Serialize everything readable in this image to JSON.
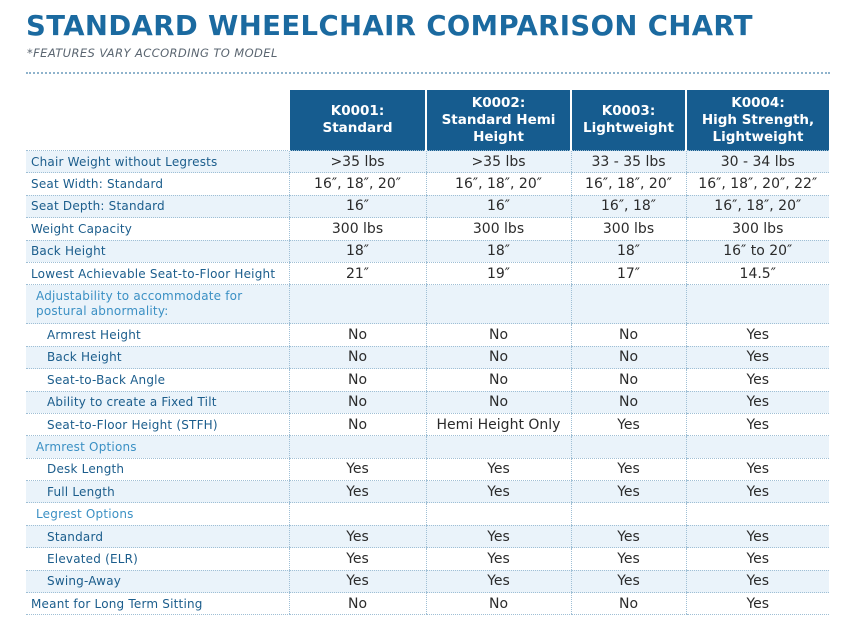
{
  "title": "STANDARD WHEELCHAIR COMPARISON CHART",
  "subtitle": "*FEATURES VARY ACCORDING TO MODEL",
  "headers": [
    "",
    "K0001:\nStandard",
    "K0002:\nStandard Hemi\nHeight",
    "K0003:\nLightweight",
    "K0004:\nHigh Strength,\nLightweight"
  ],
  "rows": [
    {
      "label": "Chair Weight without Legrests",
      "kind": "top",
      "values": [
        ">35 lbs",
        ">35 lbs",
        "33 - 35 lbs",
        "30 - 34 lbs"
      ]
    },
    {
      "label": "Seat Width: Standard",
      "kind": "top",
      "values": [
        "16″, 18″, 20″",
        "16″, 18″, 20″",
        "16″, 18″, 20″",
        "16″, 18″, 20″, 22″"
      ]
    },
    {
      "label": "Seat Depth: Standard",
      "kind": "top",
      "values": [
        "16″",
        "16″",
        "16″, 18″",
        "16″, 18″, 20″"
      ]
    },
    {
      "label": "Weight Capacity",
      "kind": "top",
      "values": [
        "300 lbs",
        "300 lbs",
        "300 lbs",
        "300 lbs"
      ]
    },
    {
      "label": "Back Height",
      "kind": "top",
      "values": [
        "18″",
        "18″",
        "18″",
        "16″ to 20″"
      ]
    },
    {
      "label": "Lowest Achievable Seat-to-Floor Height",
      "kind": "top",
      "values": [
        "21″",
        "19″",
        "17″",
        "14.5″"
      ]
    },
    {
      "label": "Adjustability to accommodate for postural abnormality:",
      "kind": "section2",
      "values": [
        "",
        "",
        "",
        ""
      ]
    },
    {
      "label": "Armrest Height",
      "kind": "sub",
      "values": [
        "No",
        "No",
        "No",
        "Yes"
      ]
    },
    {
      "label": "Back Height",
      "kind": "sub",
      "values": [
        "No",
        "No",
        "No",
        "Yes"
      ]
    },
    {
      "label": "Seat-to-Back Angle",
      "kind": "sub",
      "values": [
        "No",
        "No",
        "No",
        "Yes"
      ]
    },
    {
      "label": "Ability to create a Fixed Tilt",
      "kind": "sub",
      "values": [
        "No",
        "No",
        "No",
        "Yes"
      ]
    },
    {
      "label": "Seat-to-Floor Height (STFH)",
      "kind": "sub",
      "values": [
        "No",
        "Hemi Height Only",
        "Yes",
        "Yes"
      ]
    },
    {
      "label": "Armrest Options",
      "kind": "section",
      "values": [
        "",
        "",
        "",
        ""
      ]
    },
    {
      "label": "Desk Length",
      "kind": "sub",
      "values": [
        "Yes",
        "Yes",
        "Yes",
        "Yes"
      ]
    },
    {
      "label": "Full Length",
      "kind": "sub",
      "values": [
        "Yes",
        "Yes",
        "Yes",
        "Yes"
      ]
    },
    {
      "label": "Legrest Options",
      "kind": "section",
      "values": [
        "",
        "",
        "",
        ""
      ]
    },
    {
      "label": "Standard",
      "kind": "sub",
      "values": [
        "Yes",
        "Yes",
        "Yes",
        "Yes"
      ]
    },
    {
      "label": "Elevated (ELR)",
      "kind": "sub",
      "values": [
        "Yes",
        "Yes",
        "Yes",
        "Yes"
      ]
    },
    {
      "label": "Swing-Away",
      "kind": "sub",
      "values": [
        "Yes",
        "Yes",
        "Yes",
        "Yes"
      ]
    },
    {
      "label": "Meant for Long Term Sitting",
      "kind": "top",
      "values": [
        "No",
        "No",
        "No",
        "Yes"
      ]
    }
  ],
  "colors": {
    "title": "#1b6aa0",
    "header_bg": "#165c8f",
    "row_label": "#1b5d8c",
    "section_label": "#3b90c4",
    "alt_row": "#eaf3fa"
  }
}
